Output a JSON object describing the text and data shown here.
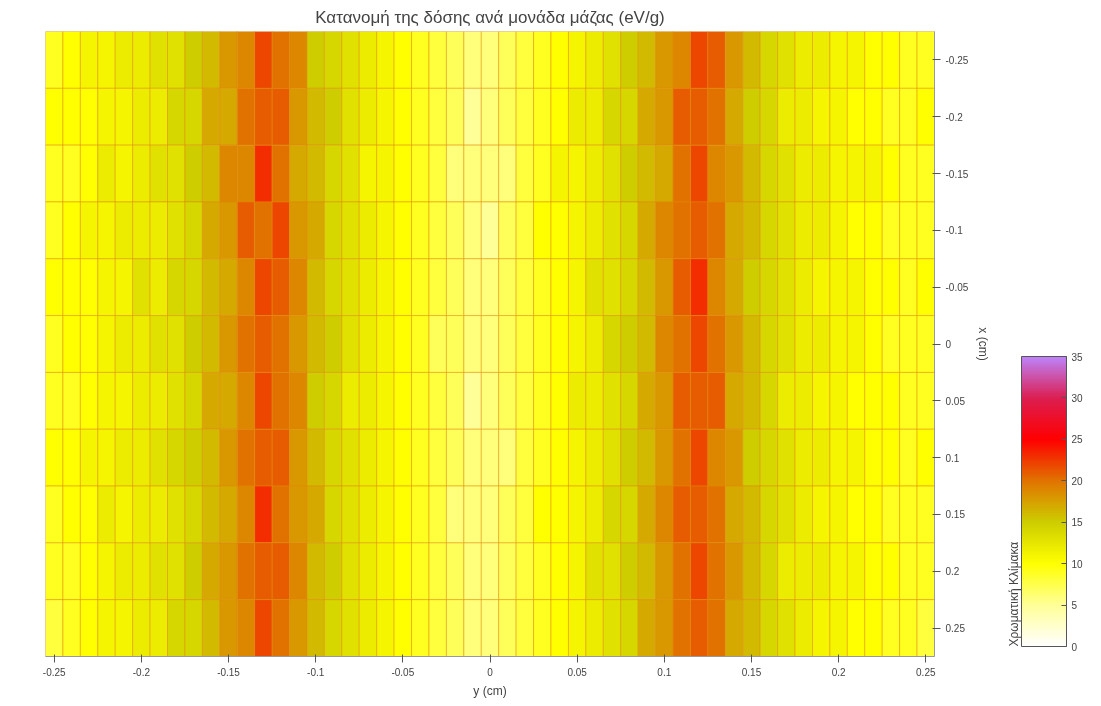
{
  "chart_data": {
    "type": "heatmap",
    "title": "Κατανομή της δόσης ανά μονάδα μάζας (eV/g)",
    "xlabel": "y (cm)",
    "ylabel": "x (cm)",
    "clabel": "Χρωματική Κλίμακα",
    "categories": [
      "-0.25",
      null,
      null,
      null,
      null,
      "-0.2",
      null,
      null,
      null,
      null,
      "-0.15",
      null,
      null,
      null,
      null,
      "-0.1",
      null,
      null,
      null,
      null,
      "-0.05",
      null,
      null,
      null,
      null,
      "0",
      null,
      null,
      null,
      null,
      "0.05",
      null,
      null,
      null,
      null,
      "0.1",
      null,
      null,
      null,
      null,
      "0.15",
      null,
      null,
      null,
      null,
      "0.2",
      null,
      null,
      null,
      null,
      "0.25"
    ],
    "y_categories": [
      "-0.25",
      "-0.2",
      "-0.15",
      "-0.1",
      "-0.05",
      "0",
      "0.05",
      "0.1",
      "0.15",
      "0.2",
      "0.25"
    ],
    "clim": [
      0,
      35
    ],
    "cticks": [
      0,
      5,
      10,
      15,
      20,
      25,
      30,
      35
    ],
    "cells": [
      [
        9,
        10,
        11,
        11,
        12,
        12,
        13,
        13,
        15,
        16,
        18,
        19,
        22,
        20,
        19,
        15,
        14,
        13,
        12,
        11,
        10,
        9,
        8,
        7,
        6,
        6,
        7,
        8,
        9,
        10,
        11,
        12,
        13,
        15,
        16,
        18,
        19,
        22,
        21,
        18,
        16,
        14,
        13,
        12,
        12,
        11,
        11,
        10,
        10,
        9,
        9
      ],
      [
        10,
        10,
        10,
        11,
        11,
        12,
        12,
        14,
        14,
        17,
        17,
        20,
        21,
        21,
        18,
        16,
        15,
        13,
        12,
        11,
        10,
        9,
        8,
        7,
        5,
        6,
        7,
        8,
        9,
        10,
        12,
        12,
        14,
        14,
        17,
        18,
        21,
        21,
        20,
        17,
        15,
        14,
        12,
        12,
        11,
        11,
        10,
        10,
        9,
        9,
        10
      ],
      [
        9,
        9,
        10,
        12,
        11,
        12,
        13,
        13,
        15,
        16,
        19,
        19,
        23,
        20,
        17,
        16,
        14,
        13,
        11,
        11,
        10,
        9,
        8,
        6,
        6,
        6,
        6,
        8,
        9,
        11,
        11,
        12,
        13,
        15,
        16,
        17,
        20,
        22,
        19,
        18,
        16,
        14,
        13,
        12,
        12,
        11,
        11,
        11,
        10,
        9,
        9
      ],
      [
        9,
        10,
        11,
        11,
        12,
        12,
        12,
        13,
        14,
        17,
        18,
        21,
        20,
        22,
        18,
        17,
        14,
        13,
        12,
        11,
        10,
        9,
        8,
        7,
        6,
        5,
        7,
        8,
        10,
        10,
        11,
        12,
        13,
        14,
        17,
        19,
        20,
        21,
        20,
        17,
        16,
        14,
        13,
        12,
        12,
        11,
        10,
        10,
        9,
        9,
        9
      ],
      [
        10,
        10,
        10,
        11,
        11,
        13,
        12,
        14,
        14,
        16,
        17,
        19,
        22,
        21,
        19,
        16,
        14,
        13,
        12,
        11,
        10,
        9,
        8,
        7,
        6,
        6,
        7,
        8,
        9,
        10,
        11,
        13,
        13,
        14,
        16,
        18,
        21,
        23,
        19,
        17,
        15,
        14,
        13,
        12,
        11,
        11,
        11,
        10,
        10,
        9,
        10
      ],
      [
        9,
        10,
        10,
        11,
        12,
        12,
        13,
        13,
        15,
        16,
        18,
        20,
        21,
        20,
        18,
        16,
        15,
        13,
        12,
        11,
        10,
        9,
        7,
        7,
        6,
        6,
        7,
        8,
        9,
        10,
        11,
        12,
        14,
        15,
        16,
        19,
        20,
        22,
        20,
        18,
        16,
        14,
        13,
        12,
        12,
        11,
        11,
        10,
        9,
        9,
        9
      ],
      [
        9,
        9,
        10,
        11,
        11,
        12,
        12,
        13,
        14,
        17,
        17,
        19,
        22,
        20,
        19,
        15,
        14,
        12,
        12,
        11,
        10,
        9,
        8,
        7,
        5,
        6,
        7,
        8,
        9,
        10,
        12,
        12,
        13,
        14,
        17,
        18,
        21,
        21,
        21,
        17,
        16,
        14,
        12,
        12,
        11,
        11,
        10,
        10,
        10,
        9,
        9
      ],
      [
        10,
        10,
        11,
        11,
        12,
        12,
        13,
        14,
        15,
        16,
        18,
        20,
        21,
        21,
        18,
        16,
        14,
        13,
        12,
        11,
        10,
        9,
        8,
        7,
        6,
        6,
        6,
        8,
        9,
        10,
        11,
        12,
        13,
        15,
        16,
        18,
        20,
        22,
        19,
        18,
        15,
        14,
        13,
        12,
        12,
        11,
        11,
        10,
        10,
        9,
        10
      ],
      [
        9,
        10,
        10,
        12,
        11,
        12,
        12,
        13,
        14,
        16,
        17,
        19,
        23,
        20,
        18,
        17,
        14,
        13,
        12,
        11,
        10,
        9,
        8,
        6,
        6,
        6,
        7,
        8,
        10,
        10,
        11,
        12,
        14,
        14,
        17,
        19,
        21,
        21,
        20,
        17,
        16,
        14,
        13,
        12,
        11,
        11,
        10,
        10,
        9,
        9,
        9
      ],
      [
        9,
        9,
        10,
        11,
        12,
        12,
        13,
        13,
        15,
        17,
        18,
        20,
        21,
        21,
        19,
        16,
        15,
        13,
        12,
        11,
        10,
        9,
        8,
        7,
        6,
        6,
        7,
        8,
        9,
        10,
        11,
        13,
        13,
        15,
        16,
        18,
        20,
        22,
        20,
        18,
        16,
        14,
        12,
        12,
        12,
        11,
        11,
        10,
        10,
        9,
        9
      ],
      [
        8,
        9,
        10,
        11,
        11,
        12,
        12,
        14,
        14,
        16,
        18,
        19,
        22,
        20,
        18,
        16,
        14,
        13,
        12,
        11,
        10,
        9,
        8,
        7,
        6,
        6,
        7,
        8,
        9,
        10,
        11,
        12,
        13,
        14,
        17,
        18,
        20,
        21,
        20,
        17,
        16,
        14,
        13,
        12,
        11,
        11,
        10,
        10,
        9,
        9,
        8
      ]
    ]
  }
}
